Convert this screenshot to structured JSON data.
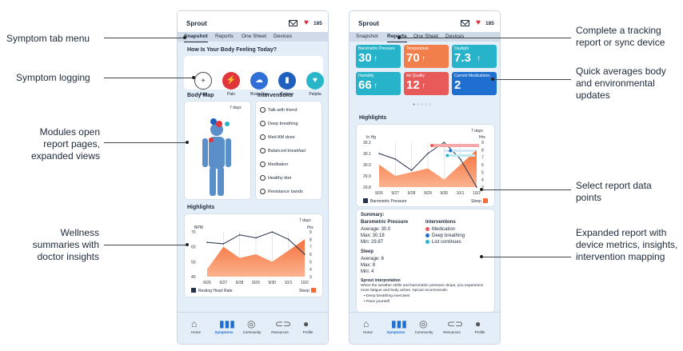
{
  "app": {
    "name": "Sprout",
    "heart_count": "185"
  },
  "tabs": [
    "Snapshot",
    "Reports",
    "One Sheet",
    "Devices"
  ],
  "screen_a": {
    "feeling_title": "How Is Your Body Feeling Today?",
    "symptoms": [
      {
        "label": "Add",
        "icon": "plus-icon",
        "color": "#ffffff"
      },
      {
        "label": "Pain",
        "icon": "lightning-icon",
        "color": "#e0363b"
      },
      {
        "label": "Brain Fog",
        "icon": "cloud-icon",
        "color": "#2f6fd6"
      },
      {
        "label": "Fatigue",
        "icon": "battery-icon",
        "color": "#1f5fbf"
      },
      {
        "label": "Palpita",
        "icon": "heartbeat-icon",
        "color": "#29b6c9"
      }
    ],
    "body_map_title": "Body Map",
    "body_map_range": "7 days",
    "interventions_title": "Interventions",
    "interventions": [
      "Talk with friend",
      "Deep breathing",
      "Med AM dose",
      "Balanced breakfast",
      "Meditation",
      "Healthy diet",
      "Resistance bands"
    ],
    "highlights_title": "Highlights",
    "range": "7 days",
    "chart_unit_left": "BPM",
    "chart_unit_right": "Hrs",
    "legend_left": "Resting Heart Rate",
    "legend_right": "Sleep"
  },
  "screen_b": {
    "tiles": [
      {
        "label": "Barometric Pressure",
        "value": "30",
        "color": "#27b3c9"
      },
      {
        "label": "Temperature",
        "value": "70",
        "color": "#f07f4b"
      },
      {
        "label": "Daylight",
        "value": "7.3",
        "color": "#27b3c9"
      },
      {
        "label": "Humidity",
        "value": "66",
        "color": "#27b3c9"
      },
      {
        "label": "Air Quality",
        "value": "12",
        "color": "#e85a5a"
      },
      {
        "label": "Current Medications",
        "value": "2",
        "color": "#1f6fd1"
      }
    ],
    "highlights_title": "Highlights",
    "range": "7 days",
    "chart_unit_left": "In Hg",
    "chart_unit_right": "Hrs",
    "legend_left": "Barometric Pressure",
    "legend_right": "Sleep",
    "summary_title": "Summary:",
    "baro_title": "Barometric Pressure",
    "baro_stats": [
      "Average: 30.0",
      "Max: 30.18",
      "Min: 29.87"
    ],
    "interventions_title": "Interventions",
    "legend_items": [
      {
        "label": "Medication",
        "color": "#e85a5a"
      },
      {
        "label": "Deep breathing",
        "color": "#1f6fd1"
      },
      {
        "label": "List continues",
        "color": "#27b3c9"
      }
    ],
    "sleep_title": "Sleep",
    "sleep_stats": [
      "Average: 6",
      "Max: 8",
      "Min: 4"
    ],
    "interp_title": "Sprout interpretation",
    "interp_text": "When the weather shifts and barometric pressure drops, you experience more fatigue and body aches. Sprout recommends:",
    "recs": [
      "Deep breathing exercises",
      "Pace yourself"
    ]
  },
  "nav": [
    "Home",
    "Symptoms",
    "Community",
    "Resources",
    "Profile"
  ],
  "annotations_left": [
    "Symptom tab menu",
    "Symptom logging",
    "Modules open report pages, expanded views",
    "Wellness summaries with doctor insights"
  ],
  "annotations_right": [
    "Complete a tracking report or sync device",
    "Quick averages body and environmental updates",
    "Select report data points",
    "Expanded report with device metrics, insights, intervention mapping"
  ],
  "chart_data": [
    {
      "type": "line",
      "title": "Highlights",
      "x": [
        "9/26",
        "9/27",
        "9/28",
        "9/29",
        "9/30",
        "10/1",
        "10/2"
      ],
      "series": [
        {
          "name": "Resting Heart Rate",
          "values": [
            63,
            62,
            68,
            66,
            70,
            65,
            55
          ]
        },
        {
          "name": "Sleep",
          "values": [
            4,
            7,
            5.5,
            6,
            5,
            6.5,
            8
          ]
        }
      ],
      "ylim": [
        40,
        70
      ],
      "ylabel": "BPM",
      "y2lim": [
        3,
        9
      ],
      "y2label": "Hrs",
      "yticks": [
        "70",
        "60",
        "50",
        "40"
      ],
      "y2ticks": [
        "9",
        "8",
        "7",
        "6",
        "5",
        "4",
        "3"
      ]
    },
    {
      "type": "line",
      "title": "Highlights",
      "x": [
        "9/26",
        "9/27",
        "9/28",
        "9/29",
        "9/30",
        "10/1",
        "10/2"
      ],
      "series": [
        {
          "name": "Barometric Pressure",
          "values": [
            30.1,
            30.05,
            29.95,
            30.1,
            30.2,
            30.05,
            29.8
          ]
        },
        {
          "name": "Sleep",
          "values": [
            6,
            4.5,
            5,
            5.5,
            4,
            6,
            8
          ]
        }
      ],
      "ylim": [
        29.8,
        30.2
      ],
      "ylabel": "In Hg",
      "y2lim": [
        3,
        9
      ],
      "y2label": "Hrs",
      "yticks": [
        "30.2",
        "30.1",
        "30.0",
        "29.9",
        "29.8"
      ],
      "y2ticks": [
        "9",
        "8",
        "7",
        "6",
        "5",
        "4",
        "3"
      ]
    }
  ]
}
